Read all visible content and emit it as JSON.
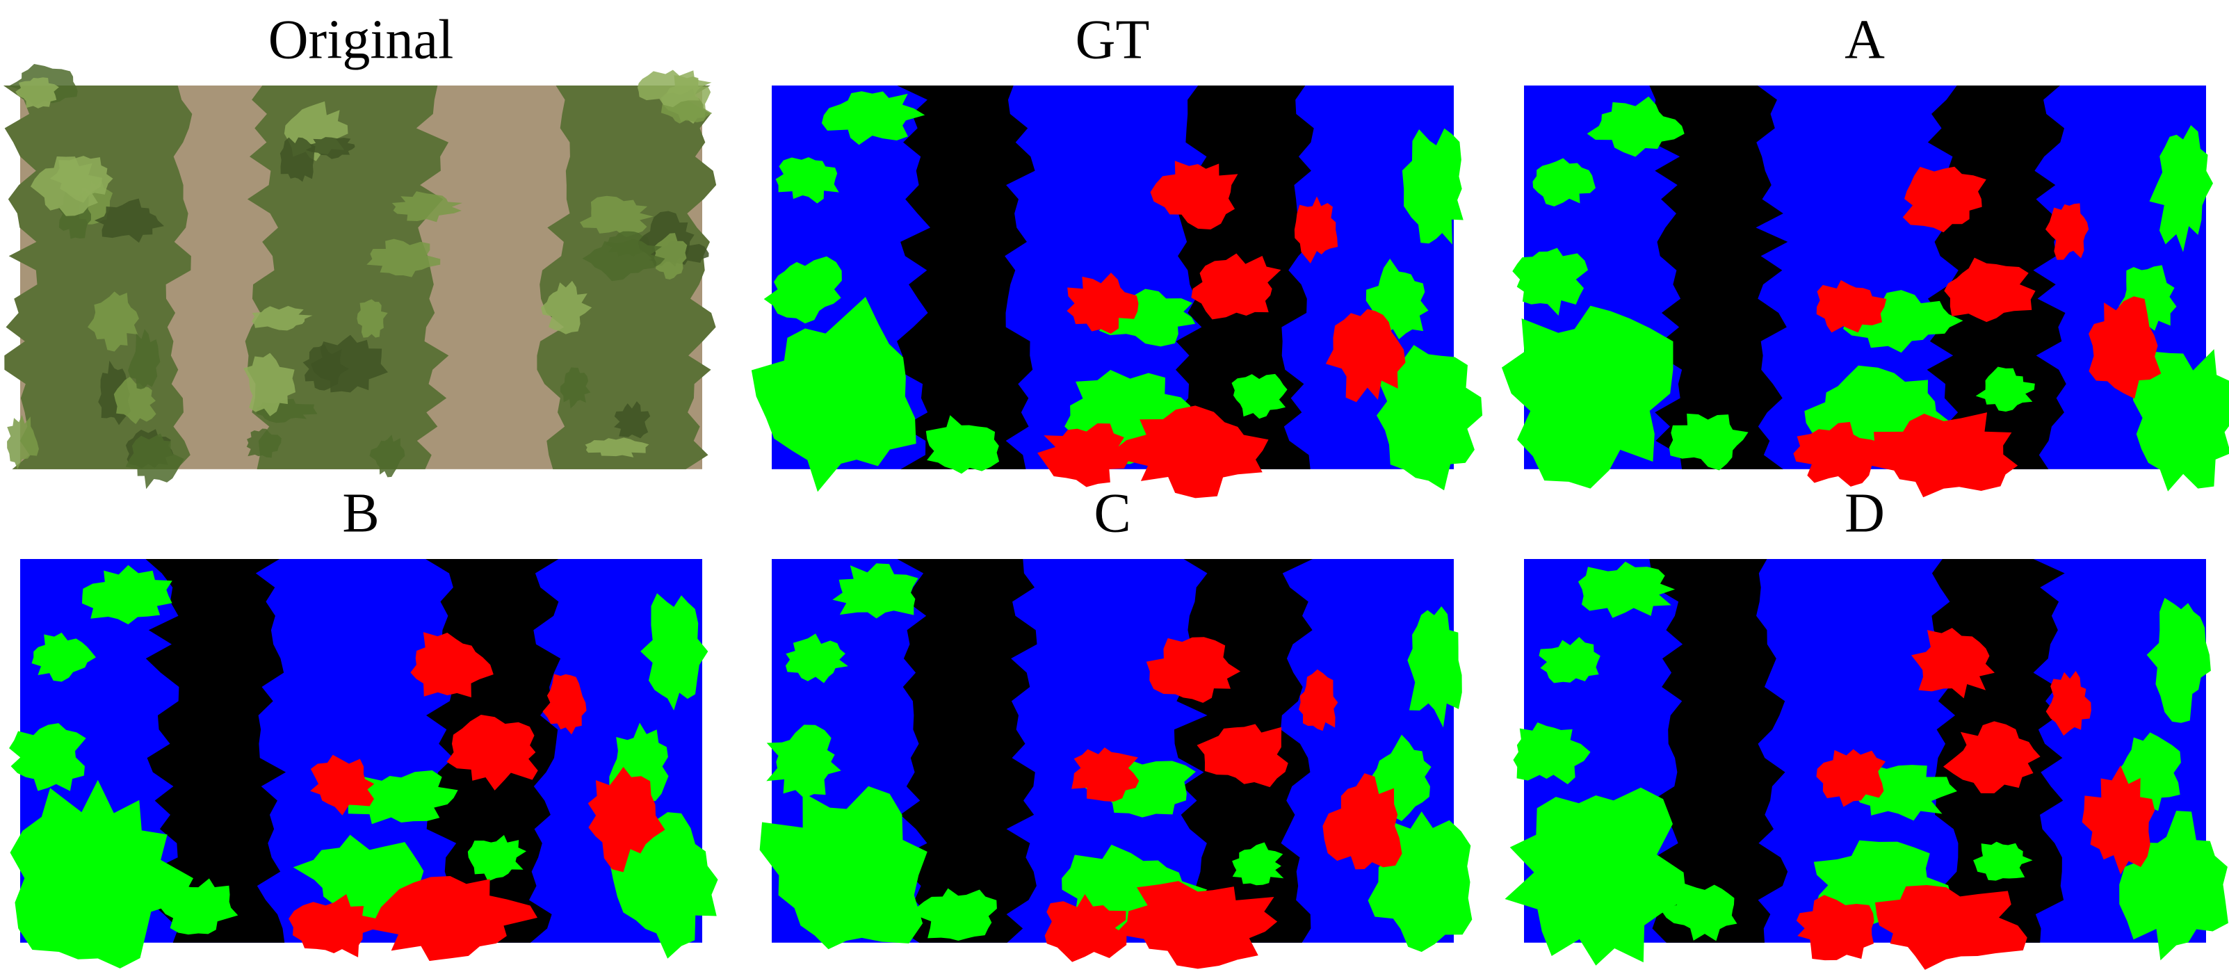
{
  "panels": [
    {
      "title": "Original"
    },
    {
      "title": "GT"
    },
    {
      "title": "A"
    },
    {
      "title": "B"
    },
    {
      "title": "C"
    },
    {
      "title": "D"
    }
  ]
}
